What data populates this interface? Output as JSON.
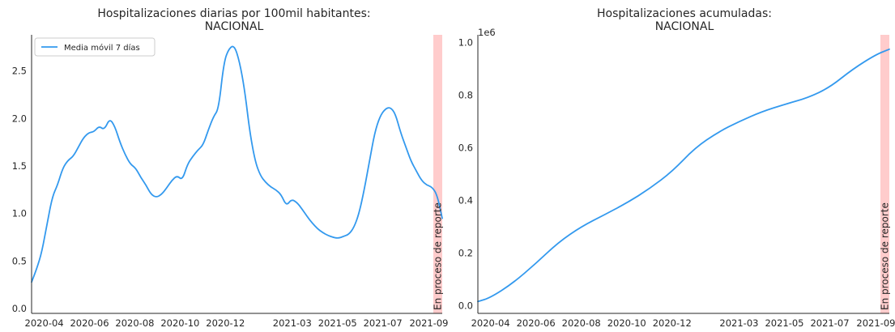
{
  "colors": {
    "series": "#3399ee",
    "band": "#ffcccc",
    "axis": "#262626"
  },
  "chart_data": [
    {
      "type": "line",
      "title_line1": "Hospitalizaciones diarias por 100mil habitantes:",
      "title_line2": "NACIONAL",
      "ylim": [
        -0.05,
        2.88
      ],
      "yticks": [
        0.0,
        0.5,
        1.0,
        1.5,
        2.0,
        2.5
      ],
      "xticks": [
        "2020-04",
        "2020-06",
        "2020-08",
        "2020-10",
        "2020-12",
        "2021-03",
        "2021-05",
        "2021-07",
        "2021-09"
      ],
      "xrange": [
        "2020-03-15",
        "2021-09-19"
      ],
      "legend": {
        "label": "Media móvil 7 días",
        "position": "top-left"
      },
      "band": {
        "start": "2021-09-07",
        "end": "2021-09-19",
        "label": "En proceso de reporte"
      },
      "series": [
        {
          "name": "Media móvil 7 días",
          "points": [
            [
              "2020-03-15",
              0.28
            ],
            [
              "2020-03-22",
              0.42
            ],
            [
              "2020-03-29",
              0.6
            ],
            [
              "2020-04-05",
              0.9
            ],
            [
              "2020-04-12",
              1.18
            ],
            [
              "2020-04-19",
              1.3
            ],
            [
              "2020-04-26",
              1.48
            ],
            [
              "2020-05-03",
              1.56
            ],
            [
              "2020-05-10",
              1.6
            ],
            [
              "2020-05-17",
              1.7
            ],
            [
              "2020-05-24",
              1.8
            ],
            [
              "2020-05-31",
              1.85
            ],
            [
              "2020-06-07",
              1.86
            ],
            [
              "2020-06-14",
              1.92
            ],
            [
              "2020-06-21",
              1.88
            ],
            [
              "2020-06-28",
              2.0
            ],
            [
              "2020-07-05",
              1.92
            ],
            [
              "2020-07-12",
              1.75
            ],
            [
              "2020-07-19",
              1.62
            ],
            [
              "2020-07-26",
              1.52
            ],
            [
              "2020-08-02",
              1.48
            ],
            [
              "2020-08-09",
              1.38
            ],
            [
              "2020-08-16",
              1.3
            ],
            [
              "2020-08-23",
              1.2
            ],
            [
              "2020-08-30",
              1.17
            ],
            [
              "2020-09-06",
              1.2
            ],
            [
              "2020-09-13",
              1.27
            ],
            [
              "2020-09-20",
              1.35
            ],
            [
              "2020-09-27",
              1.4
            ],
            [
              "2020-10-04",
              1.35
            ],
            [
              "2020-10-11",
              1.52
            ],
            [
              "2020-10-18",
              1.6
            ],
            [
              "2020-10-25",
              1.67
            ],
            [
              "2020-11-01",
              1.72
            ],
            [
              "2020-11-08",
              1.88
            ],
            [
              "2020-11-15",
              2.02
            ],
            [
              "2020-11-22",
              2.1
            ],
            [
              "2020-11-29",
              2.6
            ],
            [
              "2020-12-06",
              2.74
            ],
            [
              "2020-12-13",
              2.77
            ],
            [
              "2020-12-20",
              2.6
            ],
            [
              "2020-12-27",
              2.3
            ],
            [
              "2021-01-03",
              1.85
            ],
            [
              "2021-01-10",
              1.55
            ],
            [
              "2021-01-17",
              1.4
            ],
            [
              "2021-01-24",
              1.33
            ],
            [
              "2021-01-31",
              1.28
            ],
            [
              "2021-02-07",
              1.25
            ],
            [
              "2021-02-14",
              1.2
            ],
            [
              "2021-02-21",
              1.08
            ],
            [
              "2021-02-28",
              1.15
            ],
            [
              "2021-03-07",
              1.12
            ],
            [
              "2021-03-14",
              1.05
            ],
            [
              "2021-03-21",
              0.97
            ],
            [
              "2021-03-28",
              0.9
            ],
            [
              "2021-04-04",
              0.84
            ],
            [
              "2021-04-11",
              0.8
            ],
            [
              "2021-04-18",
              0.77
            ],
            [
              "2021-04-25",
              0.75
            ],
            [
              "2021-05-02",
              0.74
            ],
            [
              "2021-05-09",
              0.76
            ],
            [
              "2021-05-16",
              0.78
            ],
            [
              "2021-05-23",
              0.85
            ],
            [
              "2021-05-30",
              1.0
            ],
            [
              "2021-06-06",
              1.25
            ],
            [
              "2021-06-13",
              1.55
            ],
            [
              "2021-06-20",
              1.85
            ],
            [
              "2021-06-27",
              2.02
            ],
            [
              "2021-07-04",
              2.1
            ],
            [
              "2021-07-11",
              2.12
            ],
            [
              "2021-07-18",
              2.05
            ],
            [
              "2021-07-25",
              1.85
            ],
            [
              "2021-08-01",
              1.7
            ],
            [
              "2021-08-08",
              1.55
            ],
            [
              "2021-08-15",
              1.45
            ],
            [
              "2021-08-22",
              1.35
            ],
            [
              "2021-08-29",
              1.3
            ],
            [
              "2021-09-05",
              1.28
            ],
            [
              "2021-09-12",
              1.2
            ],
            [
              "2021-09-19",
              0.95
            ]
          ]
        }
      ]
    },
    {
      "type": "line",
      "title_line1": "Hospitalizaciones acumuladas:",
      "title_line2": "NACIONAL",
      "multiplier": "1e6",
      "ylim": [
        -0.03,
        1.03
      ],
      "yticks": [
        0.0,
        0.2,
        0.4,
        0.6,
        0.8,
        1.0
      ],
      "xticks": [
        "2020-04",
        "2020-06",
        "2020-08",
        "2020-10",
        "2020-12",
        "2021-03",
        "2021-05",
        "2021-07",
        "2021-09"
      ],
      "xrange": [
        "2020-03-15",
        "2021-09-19"
      ],
      "band": {
        "start": "2021-09-07",
        "end": "2021-09-19",
        "label": "En proceso de reporte"
      },
      "series": [
        {
          "points": [
            [
              "2020-03-15",
              0.015
            ],
            [
              "2020-04-01",
              0.03
            ],
            [
              "2020-05-01",
              0.085
            ],
            [
              "2020-06-01",
              0.16
            ],
            [
              "2020-07-01",
              0.24
            ],
            [
              "2020-08-01",
              0.3
            ],
            [
              "2020-09-01",
              0.345
            ],
            [
              "2020-10-01",
              0.39
            ],
            [
              "2020-11-01",
              0.445
            ],
            [
              "2020-12-01",
              0.51
            ],
            [
              "2021-01-01",
              0.6
            ],
            [
              "2021-02-01",
              0.66
            ],
            [
              "2021-03-01",
              0.7
            ],
            [
              "2021-04-01",
              0.738
            ],
            [
              "2021-05-01",
              0.765
            ],
            [
              "2021-06-01",
              0.79
            ],
            [
              "2021-07-01",
              0.83
            ],
            [
              "2021-08-01",
              0.9
            ],
            [
              "2021-09-01",
              0.955
            ],
            [
              "2021-09-19",
              0.975
            ]
          ]
        }
      ]
    }
  ]
}
